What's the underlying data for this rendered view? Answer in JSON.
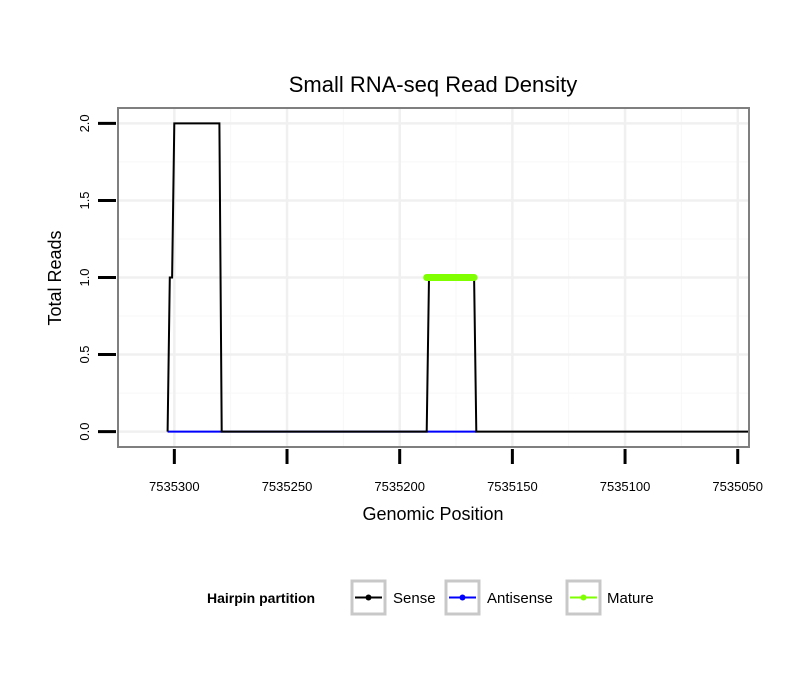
{
  "chart_data": {
    "type": "line",
    "title": "Small RNA-seq Read Density",
    "xlabel": "Genomic Position",
    "ylabel": "Total Reads",
    "x_reversed": true,
    "xlim": [
      7535325,
      7535045
    ],
    "ylim": [
      -0.1,
      2.1
    ],
    "x_ticks": [
      7535300,
      7535250,
      7535200,
      7535150,
      7535100,
      7535050
    ],
    "x_tick_labels": [
      "7535300",
      "7535250",
      "7535200",
      "7535150",
      "7535100",
      "7535050"
    ],
    "y_ticks": [
      0.0,
      0.5,
      1.0,
      1.5,
      2.0
    ],
    "y_tick_labels": [
      "0.0",
      "0.5",
      "1.0",
      "1.5",
      "2.0"
    ],
    "grid": true,
    "legend": {
      "title": "Hairpin partition",
      "position": "bottom",
      "entries": [
        {
          "name": "Sense",
          "color": "#000000"
        },
        {
          "name": "Antisense",
          "color": "#0000ff"
        },
        {
          "name": "Mature",
          "color": "#7fff00"
        }
      ]
    },
    "series": [
      {
        "name": "Sense",
        "color": "#000000",
        "style": "line",
        "points": [
          [
            7535303,
            0
          ],
          [
            7535302,
            1
          ],
          [
            7535301,
            1
          ],
          [
            7535300,
            2
          ],
          [
            7535280,
            2
          ],
          [
            7535279,
            0
          ],
          [
            7535188,
            0
          ],
          [
            7535187,
            1
          ],
          [
            7535167,
            1
          ],
          [
            7535166,
            0
          ],
          [
            7535045,
            0
          ]
        ]
      },
      {
        "name": "Antisense",
        "color": "#0000ff",
        "style": "line",
        "points": [
          [
            7535303,
            0
          ],
          [
            7535279,
            0
          ],
          [
            7535188,
            0
          ],
          [
            7535166,
            0
          ]
        ]
      },
      {
        "name": "Mature",
        "color": "#7fff00",
        "style": "thick",
        "points": [
          [
            7535188,
            1
          ],
          [
            7535167,
            1
          ]
        ]
      }
    ]
  }
}
